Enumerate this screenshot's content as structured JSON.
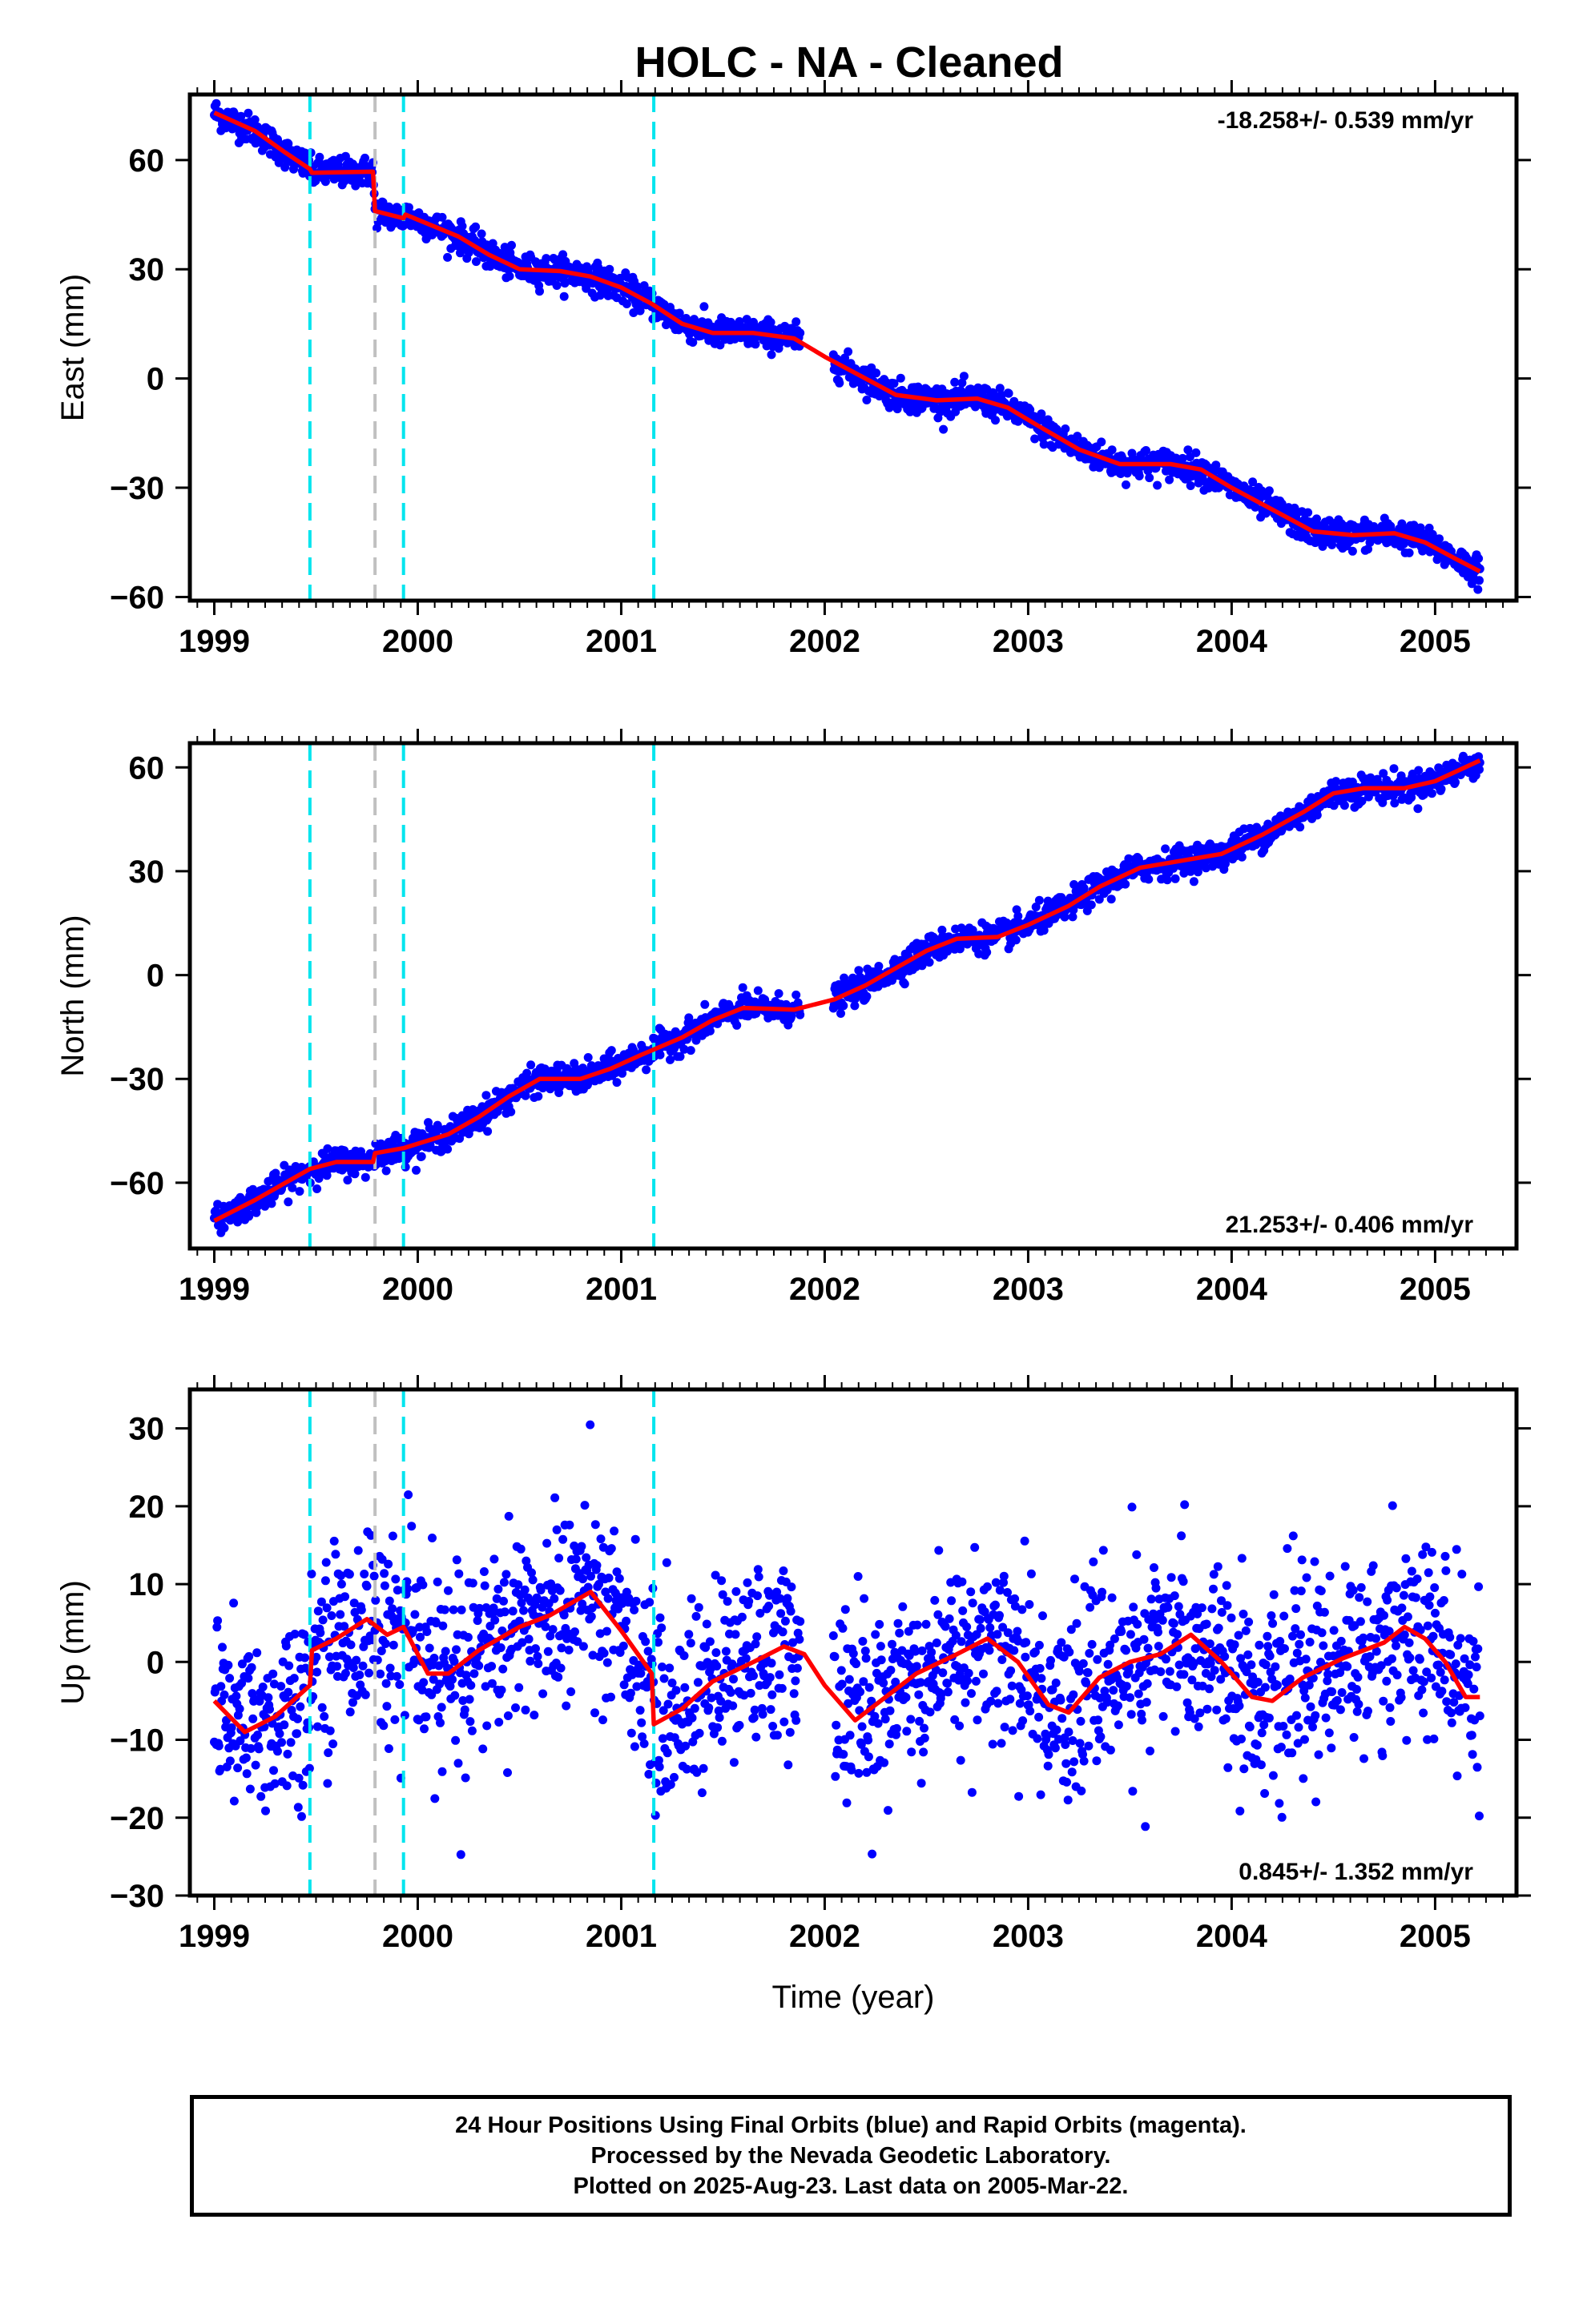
{
  "colors": {
    "points": "#0000ff",
    "model": "#ff0000",
    "equipment_change": "#00e5ee",
    "other_event": "#c0c0c0",
    "frame": "#000000"
  },
  "chart_data": [
    {
      "type": "scatter",
      "title": "HOLC  - NA - Cleaned",
      "xlabel": "",
      "ylabel": "East (mm)",
      "rate_label": "-18.258+/- 0.539 mm/yr",
      "rate_position": "top-right",
      "xlim": [
        1998.88,
        2005.4
      ],
      "ylim": [
        -61,
        78
      ],
      "xticks": [
        1999,
        2000,
        2001,
        2002,
        2003,
        2004,
        2005
      ],
      "xtick_labels": [
        "1999",
        "2000",
        "2001",
        "2002",
        "2003",
        "2004",
        "2005"
      ],
      "yticks": [
        -60,
        -30,
        0,
        30,
        60
      ],
      "ytick_labels": [
        "−60",
        "−30",
        "0",
        "30",
        "60"
      ],
      "data_start": 1999.0,
      "data_end": 2005.22,
      "rate": -18.258,
      "scatter_mm": 2.0,
      "model": [
        [
          1999.0,
          73
        ],
        [
          1999.2,
          68
        ],
        [
          1999.35,
          62
        ],
        [
          1999.47,
          57.5
        ],
        [
          1999.48,
          56.5
        ],
        [
          1999.78,
          56.8
        ],
        [
          1999.79,
          46
        ],
        [
          1999.93,
          44
        ],
        [
          1999.94,
          45
        ],
        [
          2000.2,
          39
        ],
        [
          2000.35,
          34
        ],
        [
          2000.5,
          30
        ],
        [
          2000.7,
          29.5
        ],
        [
          2000.85,
          28
        ],
        [
          2001.0,
          25
        ],
        [
          2001.15,
          20.5
        ],
        [
          2001.3,
          15
        ],
        [
          2001.45,
          12.5
        ],
        [
          2001.65,
          12.5
        ],
        [
          2001.85,
          11
        ],
        [
          2002.0,
          6
        ],
        [
          2002.2,
          0
        ],
        [
          2002.35,
          -4.5
        ],
        [
          2002.55,
          -6
        ],
        [
          2002.75,
          -5.5
        ],
        [
          2002.9,
          -8
        ],
        [
          2003.05,
          -13
        ],
        [
          2003.25,
          -19.5
        ],
        [
          2003.45,
          -23.5
        ],
        [
          2003.7,
          -23.5
        ],
        [
          2003.85,
          -25
        ],
        [
          2004.0,
          -30
        ],
        [
          2004.2,
          -36
        ],
        [
          2004.4,
          -42
        ],
        [
          2004.6,
          -43
        ],
        [
          2004.8,
          -42.5
        ],
        [
          2004.95,
          -45
        ],
        [
          2005.1,
          -49.5
        ],
        [
          2005.22,
          -53
        ]
      ]
    },
    {
      "type": "scatter",
      "title": "",
      "xlabel": "",
      "ylabel": "North (mm)",
      "rate_label": "21.253+/- 0.406 mm/yr",
      "rate_position": "bottom-right",
      "xlim": [
        1998.88,
        2005.4
      ],
      "ylim": [
        -79,
        67
      ],
      "xticks": [
        1999,
        2000,
        2001,
        2002,
        2003,
        2004,
        2005
      ],
      "xtick_labels": [
        "1999",
        "2000",
        "2001",
        "2002",
        "2003",
        "2004",
        "2005"
      ],
      "yticks": [
        -60,
        -30,
        0,
        30,
        60
      ],
      "ytick_labels": [
        "−60",
        "−30",
        "0",
        "30",
        "60"
      ],
      "data_start": 1999.0,
      "data_end": 2005.22,
      "rate": 21.253,
      "scatter_mm": 2.0,
      "model": [
        [
          1999.0,
          -71
        ],
        [
          1999.2,
          -65
        ],
        [
          1999.35,
          -60
        ],
        [
          1999.47,
          -56
        ],
        [
          1999.6,
          -54
        ],
        [
          1999.78,
          -54
        ],
        [
          1999.79,
          -51.5
        ],
        [
          1999.93,
          -50
        ],
        [
          2000.15,
          -46
        ],
        [
          2000.3,
          -41
        ],
        [
          2000.45,
          -35
        ],
        [
          2000.6,
          -30
        ],
        [
          2000.8,
          -30
        ],
        [
          2000.95,
          -27
        ],
        [
          2001.1,
          -23
        ],
        [
          2001.3,
          -18
        ],
        [
          2001.45,
          -13
        ],
        [
          2001.6,
          -9.5
        ],
        [
          2001.85,
          -10
        ],
        [
          2002.05,
          -7
        ],
        [
          2002.2,
          -3
        ],
        [
          2002.35,
          2
        ],
        [
          2002.5,
          7
        ],
        [
          2002.65,
          10.5
        ],
        [
          2002.85,
          11
        ],
        [
          2003.0,
          14.5
        ],
        [
          2003.2,
          20
        ],
        [
          2003.35,
          25.5
        ],
        [
          2003.55,
          31
        ],
        [
          2003.75,
          33
        ],
        [
          2003.95,
          35
        ],
        [
          2004.15,
          40.5
        ],
        [
          2004.35,
          47
        ],
        [
          2004.5,
          52.5
        ],
        [
          2004.65,
          54
        ],
        [
          2004.85,
          54
        ],
        [
          2005.0,
          56
        ],
        [
          2005.22,
          62
        ]
      ]
    },
    {
      "type": "scatter",
      "title": "",
      "xlabel": "Time (year)",
      "ylabel": "Up (mm)",
      "rate_label": "0.845+/- 1.352 mm/yr",
      "rate_position": "bottom-right",
      "xlim": [
        1998.88,
        2005.4
      ],
      "ylim": [
        -30,
        35
      ],
      "xticks": [
        1999,
        2000,
        2001,
        2002,
        2003,
        2004,
        2005
      ],
      "xtick_labels": [
        "1999",
        "2000",
        "2001",
        "2002",
        "2003",
        "2004",
        "2005"
      ],
      "yticks": [
        -30,
        -20,
        -10,
        0,
        10,
        20,
        30
      ],
      "ytick_labels": [
        "−30",
        "−20",
        "−10",
        "0",
        "10",
        "20",
        "30"
      ],
      "data_start": 1999.0,
      "data_end": 2005.22,
      "rate": 0.845,
      "scatter_mm": 6.0,
      "model": [
        [
          1999.0,
          -5
        ],
        [
          1999.15,
          -9
        ],
        [
          1999.3,
          -7
        ],
        [
          1999.47,
          -3
        ],
        [
          1999.48,
          1.5
        ],
        [
          1999.6,
          3
        ],
        [
          1999.75,
          5.5
        ],
        [
          1999.85,
          3.5
        ],
        [
          1999.93,
          4.5
        ],
        [
          2000.05,
          -1.5
        ],
        [
          2000.15,
          -1.5
        ],
        [
          2000.3,
          1.5
        ],
        [
          2000.5,
          4.5
        ],
        [
          2000.65,
          6
        ],
        [
          2000.85,
          9
        ],
        [
          2001.0,
          4
        ],
        [
          2001.15,
          -1.5
        ],
        [
          2001.16,
          -8
        ],
        [
          2001.3,
          -6
        ],
        [
          2001.45,
          -2.5
        ],
        [
          2001.65,
          0
        ],
        [
          2001.8,
          2
        ],
        [
          2001.9,
          1
        ],
        [
          2002.0,
          -3
        ],
        [
          2002.15,
          -7.5
        ],
        [
          2002.3,
          -4.5
        ],
        [
          2002.45,
          -1.5
        ],
        [
          2002.65,
          1
        ],
        [
          2002.8,
          3
        ],
        [
          2002.95,
          0
        ],
        [
          2003.1,
          -5.5
        ],
        [
          2003.2,
          -6.5
        ],
        [
          2003.35,
          -2
        ],
        [
          2003.5,
          0
        ],
        [
          2003.65,
          1
        ],
        [
          2003.8,
          3.5
        ],
        [
          2003.95,
          0
        ],
        [
          2004.1,
          -4.5
        ],
        [
          2004.2,
          -5
        ],
        [
          2004.35,
          -2
        ],
        [
          2004.55,
          0.5
        ],
        [
          2004.75,
          2.5
        ],
        [
          2004.85,
          4.5
        ],
        [
          2004.95,
          3
        ],
        [
          2005.05,
          0
        ],
        [
          2005.15,
          -4.5
        ],
        [
          2005.22,
          -4.5
        ]
      ]
    }
  ],
  "event_lines": [
    {
      "x": 1999.47,
      "kind": "equipment_change"
    },
    {
      "x": 1999.79,
      "kind": "other_event"
    },
    {
      "x": 1999.93,
      "kind": "equipment_change"
    },
    {
      "x": 2001.16,
      "kind": "equipment_change"
    }
  ],
  "footer": {
    "line1": "24 Hour Positions Using Final Orbits (blue) and Rapid Orbits (magenta).",
    "line2": "Processed by the Nevada Geodetic Laboratory.",
    "line3": "Plotted on 2025-Aug-23. Last data on 2005-Mar-22."
  }
}
